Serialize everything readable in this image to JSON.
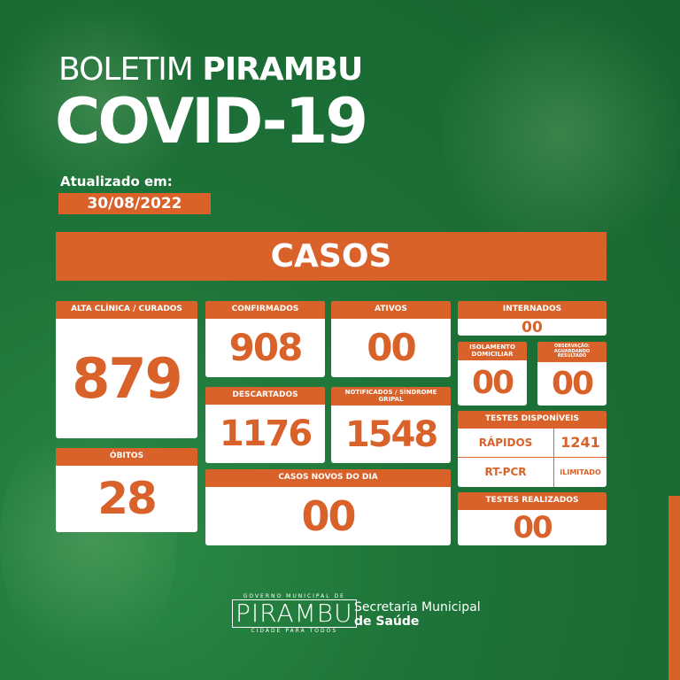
{
  "header": {
    "title_light": "BOLETIM",
    "title_bold": "PIRAMBU",
    "subtitle": "COVID-19",
    "updated_label": "Atualizado em:",
    "updated_date": "30/08/2022"
  },
  "banner": "CASOS",
  "cards": {
    "alta": {
      "label": "ALTA CLÍNICA / CURADOS",
      "value": "879"
    },
    "obitos": {
      "label": "ÓBITOS",
      "value": "28"
    },
    "confirmados": {
      "label": "CONFIRMADOS",
      "value": "908"
    },
    "ativos": {
      "label": "ATIVOS",
      "value": "00"
    },
    "descartados": {
      "label": "DESCARTADOS",
      "value": "1176"
    },
    "notificados": {
      "label": "NOTIFICADOS / SÍNDROME GRIPAL",
      "value": "1548"
    },
    "novos": {
      "label": "CASOS NOVOS DO DIA",
      "value": "00"
    },
    "internados": {
      "label": "INTERNADOS",
      "value": "00"
    },
    "isolamento": {
      "label": "ISOLAMENTO DOMICILIAR",
      "value": "00"
    },
    "observacao": {
      "label": "OBSERVAÇÃO: AGUARDANDO RESULTADO",
      "value": "00"
    },
    "testes_disp": {
      "label": "TESTES DISPONÍVEIS",
      "rapidos_label": "RÁPIDOS",
      "rapidos_value": "1241",
      "rtpcr_label": "RT-PCR",
      "rtpcr_value": "ILIMITADO"
    },
    "testes_real": {
      "label": "TESTES REALIZADOS",
      "value": "00"
    }
  },
  "footer": {
    "logo_top": "GOVERNO MUNICIPAL DE",
    "logo_name": "PIRAMBU",
    "logo_bottom": "CIDADE PARA TODOS",
    "sec_line1": "Secretaria Municipal",
    "sec_line2": "de Saúde"
  },
  "colors": {
    "green": "#1d7338",
    "orange": "#d9612a"
  }
}
